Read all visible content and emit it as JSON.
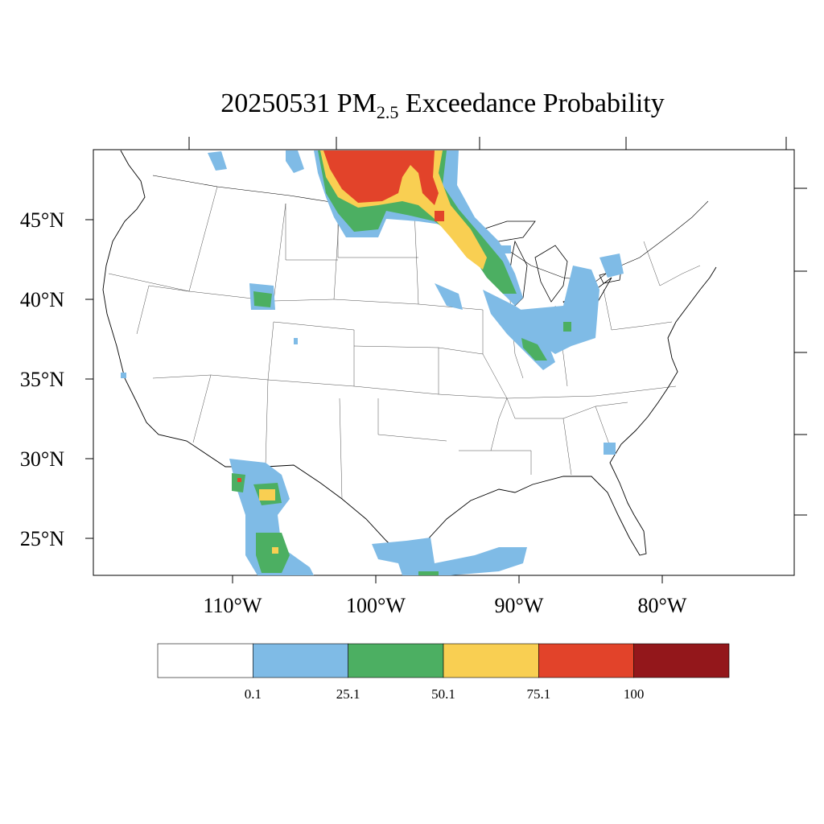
{
  "title": {
    "date": "20250531",
    "pm": "PM",
    "sub": "2.5",
    "rest": " Exceedance Probability"
  },
  "axes": {
    "lat_labels": [
      "45°N",
      "40°N",
      "35°N",
      "30°N",
      "25°N"
    ],
    "lon_labels": [
      "110°W",
      "100°W",
      "90°W",
      "80°W"
    ]
  },
  "colorbar": {
    "colors": [
      "#ffffff",
      "#7fbbe6",
      "#4caf62",
      "#f9cf52",
      "#e2432a",
      "#93171b"
    ],
    "labels": [
      "0.1",
      "25.1",
      "50.1",
      "75.1",
      "100"
    ]
  },
  "colors": {
    "light_blue": "#7fbbe6",
    "green": "#4caf62",
    "yellow": "#f9cf52",
    "red": "#e2432a",
    "dark_red": "#93171b"
  }
}
